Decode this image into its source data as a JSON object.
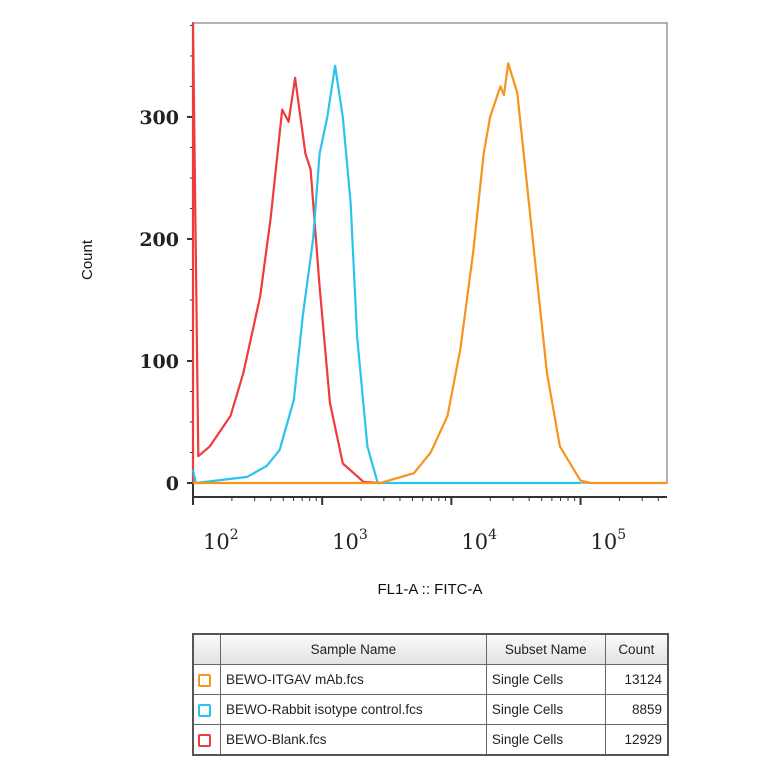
{
  "chart_data": {
    "type": "line",
    "title": "",
    "xlabel": "FL1-A :: FITC-A",
    "ylabel": "Count",
    "xscale": "log",
    "xlim": [
      100,
      467000
    ],
    "ylim": [
      0,
      377
    ],
    "xticks": [
      100,
      1000,
      10000,
      100000
    ],
    "xtick_labels": [
      {
        "base": "10",
        "exp": "2"
      },
      {
        "base": "10",
        "exp": "3"
      },
      {
        "base": "10",
        "exp": "4"
      },
      {
        "base": "10",
        "exp": "5"
      }
    ],
    "yticks": [
      0,
      100,
      200,
      300
    ],
    "ytick_labels": [
      "0",
      "100",
      "200",
      "300"
    ],
    "grid": false,
    "series": [
      {
        "name": "BEWO-Blank.fcs",
        "color": "#ee3b3b",
        "points": [
          [
            100,
            0
          ],
          [
            100,
            377
          ],
          [
            110,
            22
          ],
          [
            135,
            30
          ],
          [
            195,
            55
          ],
          [
            245,
            90
          ],
          [
            331,
            153
          ],
          [
            398,
            216
          ],
          [
            490,
            306
          ],
          [
            550,
            296
          ],
          [
            617,
            332
          ],
          [
            741,
            270
          ],
          [
            813,
            257
          ],
          [
            955,
            161
          ],
          [
            1148,
            66
          ],
          [
            1445,
            16
          ],
          [
            2089,
            1
          ],
          [
            2818,
            0
          ]
        ]
      },
      {
        "name": "BEWO-Rabbit isotype control.fcs",
        "color": "#29c3ee",
        "points": [
          [
            100,
            11
          ],
          [
            105,
            0
          ],
          [
            263,
            5
          ],
          [
            372,
            14
          ],
          [
            468,
            27
          ],
          [
            603,
            68
          ],
          [
            708,
            137
          ],
          [
            851,
            200
          ],
          [
            955,
            270
          ],
          [
            1096,
            300
          ],
          [
            1259,
            342
          ],
          [
            1445,
            300
          ],
          [
            1660,
            230
          ],
          [
            1862,
            120
          ],
          [
            2239,
            30
          ],
          [
            2692,
            0
          ],
          [
            100000,
            0
          ]
        ]
      },
      {
        "name": "BEWO-ITGAV mAb.fcs",
        "color": "#f7941d",
        "points": [
          [
            100,
            0
          ],
          [
            2818,
            0
          ],
          [
            5129,
            8
          ],
          [
            6918,
            25
          ],
          [
            9333,
            55
          ],
          [
            11749,
            110
          ],
          [
            14791,
            190
          ],
          [
            17783,
            270
          ],
          [
            19953,
            300
          ],
          [
            23988,
            325
          ],
          [
            25500,
            318
          ],
          [
            27542,
            344
          ],
          [
            32359,
            320
          ],
          [
            36308,
            270
          ],
          [
            43652,
            190
          ],
          [
            54954,
            90
          ],
          [
            69183,
            30
          ],
          [
            100000,
            2
          ],
          [
            120226,
            0
          ],
          [
            467000,
            0
          ]
        ]
      }
    ]
  },
  "legend_table": {
    "headers": {
      "sample": "Sample Name",
      "subset": "Subset Name",
      "count": "Count"
    },
    "rows": [
      {
        "color": "#f7941d",
        "sample": "BEWO-ITGAV mAb.fcs",
        "subset": "Single Cells",
        "count": "13124"
      },
      {
        "color": "#29c3ee",
        "sample": "BEWO-Rabbit isotype control.fcs",
        "subset": "Single Cells",
        "count": "8859"
      },
      {
        "color": "#ee3b3b",
        "sample": "BEWO-Blank.fcs",
        "subset": "Single Cells",
        "count": "12929"
      }
    ]
  }
}
